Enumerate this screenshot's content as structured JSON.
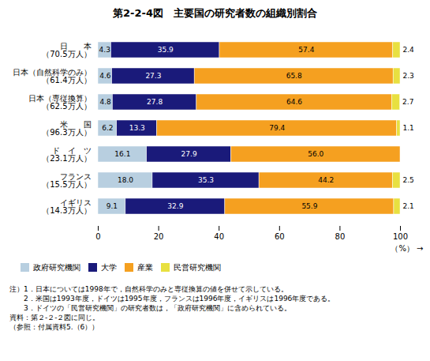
{
  "chart_data": {
    "type": "bar",
    "orientation": "horizontal",
    "stacked": true,
    "title": "第2-2-4図　主要国の研究者数の組織別割合",
    "xlabel": "（%）",
    "categories": [
      "日　　本\n（70.5万人）",
      "日本（自然科学のみ）\n（61.4万人）",
      "日本（専従換算）\n（62.5万人）",
      "米　　国\n（96.3万人）",
      "ド　イ　ツ\n（23.1万人）",
      "フランス\n（15.5万人）",
      "イギリス\n（14.3万人）"
    ],
    "series": [
      {
        "name": "政府研究機関",
        "color": "#b8cfe0",
        "values": [
          4.3,
          4.6,
          4.8,
          6.2,
          16.1,
          18.0,
          9.1
        ],
        "value_labels": [
          "4.3",
          "4.6",
          "4.8",
          "6.2",
          "16.1",
          "18.0",
          "9.1"
        ]
      },
      {
        "name": "大学",
        "color": "#1a1a7a",
        "values": [
          35.9,
          27.3,
          27.8,
          13.3,
          27.9,
          35.3,
          32.9
        ],
        "value_labels": [
          "35.9",
          "27.3",
          "27.8",
          "13.3",
          "27.9",
          "35.3",
          "32.9"
        ]
      },
      {
        "name": "産業",
        "color": "#f5a020",
        "values": [
          57.4,
          65.8,
          64.6,
          79.4,
          56.0,
          44.2,
          55.9
        ],
        "value_labels": [
          "57.4",
          "65.8",
          "64.6",
          "79.4",
          "56.0",
          "44.2",
          "55.9"
        ]
      },
      {
        "name": "民営研究機関",
        "color": "#e8e040",
        "values": [
          2.4,
          2.3,
          2.7,
          1.1,
          0.0,
          2.5,
          2.1
        ],
        "value_labels": [
          "2.4",
          "2.3",
          "2.7",
          "1.1",
          null,
          "2.5",
          "2.1"
        ]
      }
    ],
    "xlim": [
      0,
      100
    ],
    "xticks": [
      0,
      20,
      40,
      60,
      80,
      100
    ],
    "grid": false,
    "data_labels": true,
    "legend": "bottom",
    "notes": [
      "注）1．日本については1998年で，自然科学のみと専従換算の値を併せて示している。",
      "　　2．米国は1993年度，ドイツは1995年度，フランスは1996年度，イギリスは1996年度である。",
      "　　3．ドイツの「民営研究機関」の研究者数は，「政府研究機関」に含められている。",
      "資料：第２-２-２図に同じ。",
      "（参照：付属資料5.（6））"
    ]
  }
}
